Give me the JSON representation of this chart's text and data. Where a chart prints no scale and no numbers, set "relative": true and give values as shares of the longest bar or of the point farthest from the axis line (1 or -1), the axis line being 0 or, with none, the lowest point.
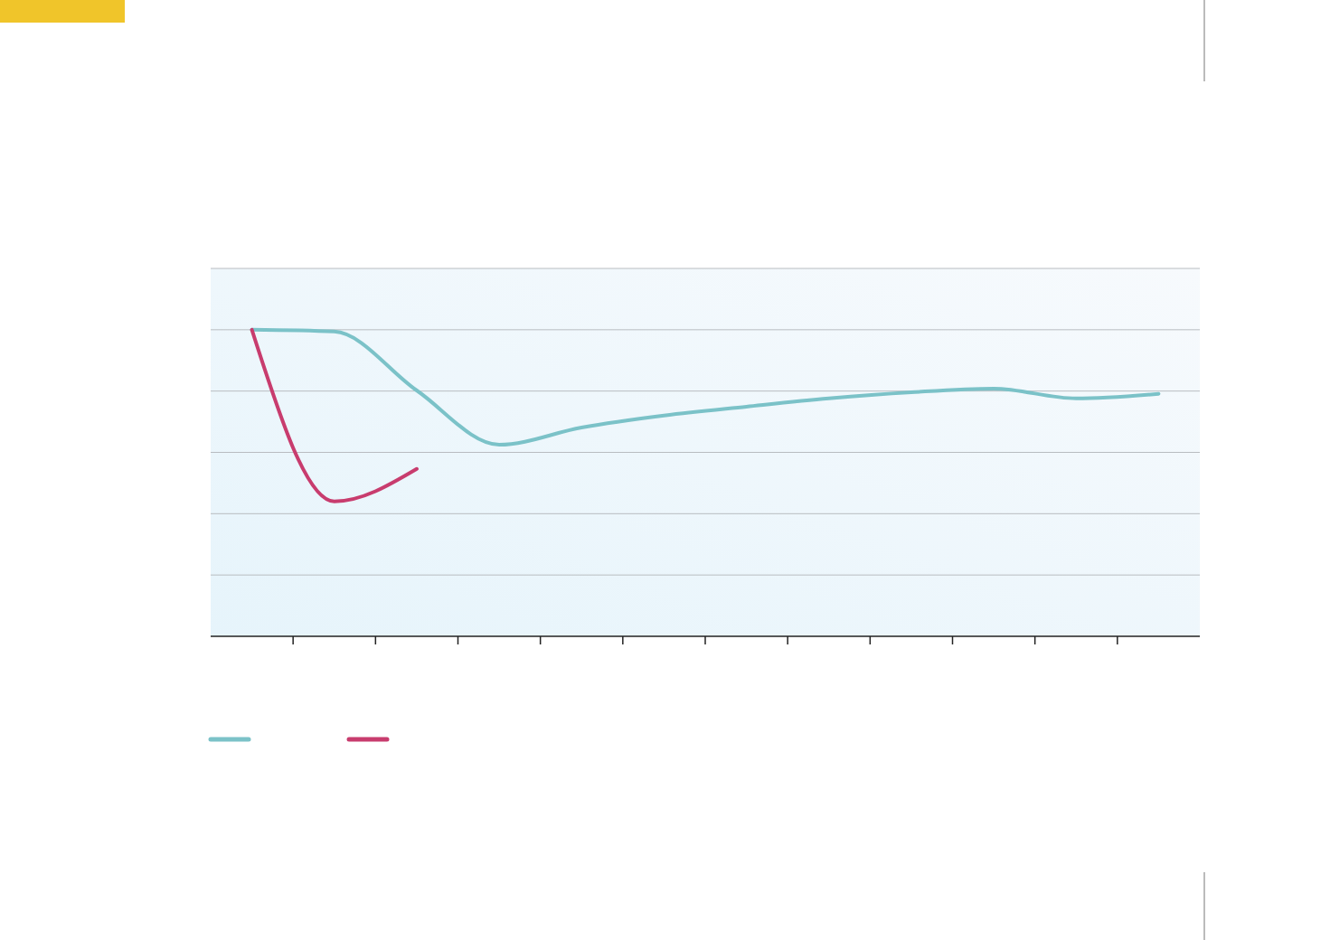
{
  "chart_data": {
    "type": "line",
    "relative": true,
    "grid": "y",
    "line_style": "solid",
    "categories": [
      null,
      null,
      null,
      null,
      null,
      null,
      null,
      null,
      null,
      null,
      null,
      null
    ],
    "series": [
      {
        "color": "#7bc2c8",
        "values": [
          1,
          0.994,
          0.802,
          0.625,
          0.681,
          0.72,
          0.749,
          0.776,
          0.796,
          0.808,
          0.776,
          0.791
        ]
      },
      {
        "color": "#c83c6e",
        "values": [
          1,
          0.44,
          0.546,
          null,
          null,
          null,
          null,
          null,
          null,
          null,
          null,
          null
        ]
      }
    ]
  }
}
